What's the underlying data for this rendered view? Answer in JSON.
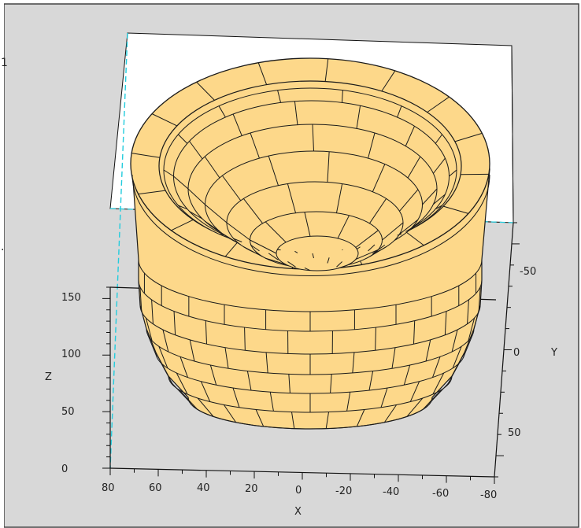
{
  "chart_data": {
    "type": "surface3d",
    "title": "",
    "object": "bowl / basket with brick-like ring pattern",
    "colors": {
      "surface": "#FDD88A",
      "edge": "#1a1a1a",
      "background": "#D8D8D8",
      "plot_area": "#FFFFFF",
      "hidden_axis": "#22CCDD"
    },
    "axes": {
      "x": {
        "label": "X",
        "range": [
          -80,
          80
        ],
        "ticks": [
          "80",
          "60",
          "40",
          "20",
          "0",
          "-20",
          "-40",
          "-60",
          "-80"
        ]
      },
      "y": {
        "label": "Y",
        "range": [
          -60,
          60
        ],
        "ticks": [
          "-50",
          "0",
          "50"
        ]
      },
      "z": {
        "label": "Z",
        "range": [
          0,
          160
        ],
        "ticks": [
          "0",
          "50",
          "100",
          "150"
        ]
      }
    },
    "side_fragments": [
      "1",
      "."
    ]
  }
}
